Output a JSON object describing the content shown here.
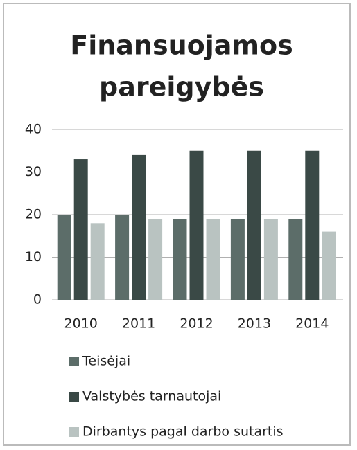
{
  "chart_data": {
    "type": "bar",
    "title": [
      "Finansuojamos",
      "pareigybės"
    ],
    "categories": [
      "2010",
      "2011",
      "2012",
      "2013",
      "2014"
    ],
    "series": [
      {
        "name": "Teisėjai",
        "color": "#5c6d69",
        "values": [
          20,
          20,
          19,
          19,
          19
        ]
      },
      {
        "name": "Valstybės tarnautojai",
        "color": "#3a4946",
        "values": [
          33,
          34,
          35,
          35,
          35
        ]
      },
      {
        "name": "Dirbantys pagal darbo sutartis",
        "color": "#b9c3c1",
        "values": [
          18,
          19,
          19,
          19,
          16
        ]
      }
    ],
    "ylim": [
      0,
      40
    ],
    "yticks": [
      0,
      10,
      20,
      30,
      40
    ],
    "grid": true,
    "legend": "bottom"
  }
}
